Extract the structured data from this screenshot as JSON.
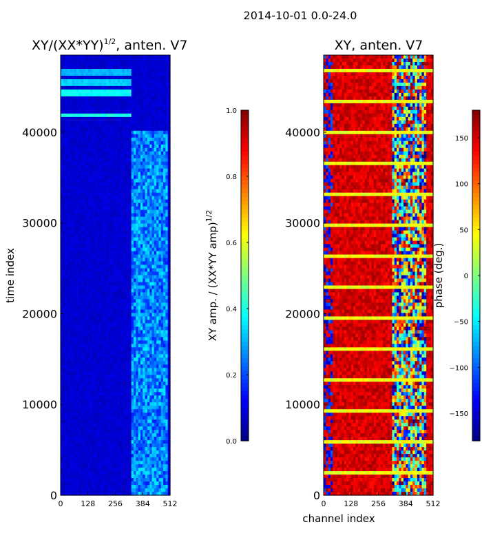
{
  "figure": {
    "suptitle": "2014-10-01 0.0-24.0",
    "colors": {
      "frame": "#000000",
      "background": "#ffffff"
    }
  },
  "chart_data": [
    {
      "type": "heatmap",
      "title_main": "XY/(XX*YY)",
      "title_sup": "1/2",
      "title_tail": ", anten. V7",
      "xlabel": "",
      "ylabel": "time index",
      "xlim": [
        0,
        512
      ],
      "ylim": [
        0,
        48500
      ],
      "xticks": [
        0,
        128,
        256,
        384,
        512
      ],
      "yticks": [
        0,
        10000,
        20000,
        30000,
        40000
      ],
      "colormap": "jet",
      "colorbar": {
        "label_main": "XY amp. / (XX*YY amp)",
        "label_sup": "1/2",
        "range": [
          0.0,
          1.0
        ],
        "ticks": [
          "0.0",
          "0.2",
          "0.4",
          "0.6",
          "0.8",
          "1.0"
        ],
        "tick_values": [
          0.0,
          0.2,
          0.4,
          0.6,
          0.8,
          1.0
        ]
      },
      "features": {
        "base_level": 0.08,
        "active_channel_start": 330,
        "active_channel_end": 500,
        "active_level": 0.3,
        "bright_bands": [
          {
            "t_start": 41500,
            "t_end": 42100,
            "level": 0.4
          },
          {
            "t_start": 43800,
            "t_end": 44800,
            "level": 0.38
          },
          {
            "t_start": 45000,
            "t_end": 45800,
            "level": 0.33
          },
          {
            "t_start": 46200,
            "t_end": 46800,
            "level": 0.3
          }
        ]
      }
    },
    {
      "type": "heatmap",
      "title": "XY, anten. V7",
      "xlabel": "channel index",
      "ylabel": "",
      "xlim": [
        0,
        512
      ],
      "ylim": [
        0,
        48500
      ],
      "xticks": [
        0,
        128,
        256,
        384,
        512
      ],
      "yticks": [
        0,
        10000,
        20000,
        30000,
        40000
      ],
      "colormap": "jet",
      "colorbar": {
        "label": "phase (deg.)",
        "range": [
          -180,
          180
        ],
        "ticks": [
          "−150",
          "−100",
          "−50",
          "0",
          "50",
          "100",
          "150"
        ],
        "tick_values": [
          -150,
          -100,
          -50,
          0,
          50,
          100,
          150
        ]
      },
      "features": {
        "base_phase": 150,
        "variable_channel_start": 320,
        "variable_channel_end": 480,
        "low_channel_end": 40,
        "horizontal_line_phase": 40
      }
    }
  ]
}
